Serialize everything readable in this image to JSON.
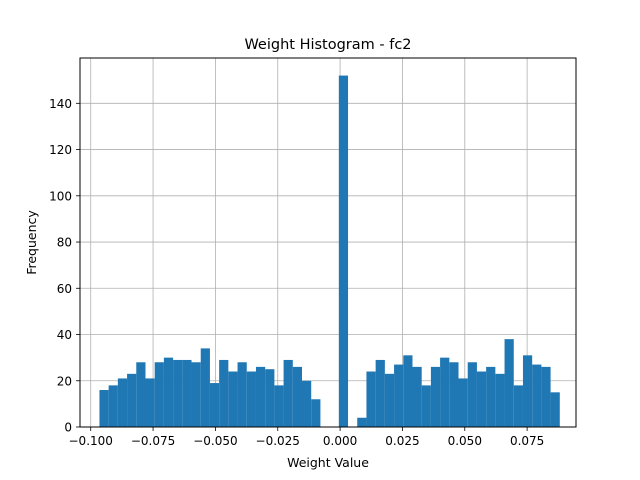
{
  "chart_data": {
    "type": "bar",
    "title": "Weight Histogram - fc2",
    "xlabel": "Weight Value",
    "ylabel": "Frequency",
    "xlim": [
      -0.1043,
      0.0946
    ],
    "ylim": [
      0,
      159.6
    ],
    "grid": true,
    "bar_color": "#1f77b4",
    "x_ticks": [
      -0.1,
      -0.075,
      -0.05,
      -0.025,
      0.0,
      0.025,
      0.05,
      0.075
    ],
    "x_tick_labels": [
      "−0.100",
      "−0.075",
      "−0.050",
      "−0.025",
      "0.000",
      "0.025",
      "0.050",
      "0.075"
    ],
    "y_ticks": [
      0,
      20,
      40,
      60,
      80,
      100,
      120,
      140
    ],
    "y_tick_labels": [
      "0",
      "20",
      "40",
      "60",
      "80",
      "100",
      "120",
      "140"
    ],
    "bin_start": -0.0965,
    "bin_width": 0.003692,
    "counts": [
      16,
      18,
      21,
      23,
      28,
      21,
      28,
      30,
      29,
      29,
      28,
      34,
      19,
      29,
      24,
      28,
      24,
      26,
      25,
      18,
      29,
      26,
      20,
      12,
      0,
      0,
      152,
      0,
      4,
      24,
      29,
      23,
      27,
      31,
      26,
      18,
      26,
      30,
      28,
      21,
      28,
      24,
      26,
      23,
      38,
      18,
      31,
      27,
      26,
      15
    ]
  }
}
